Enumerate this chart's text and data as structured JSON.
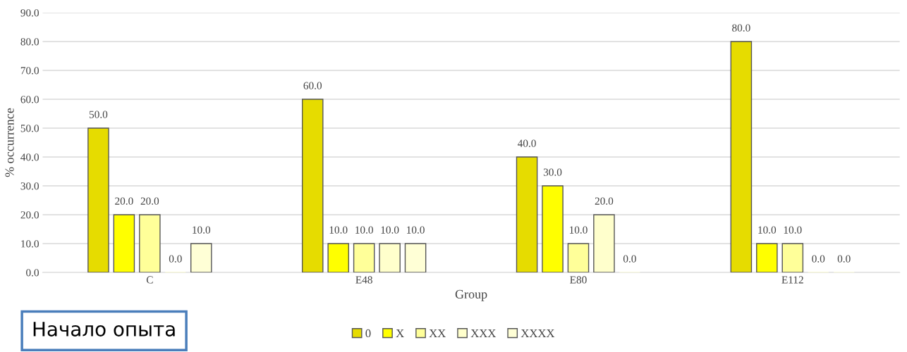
{
  "chart_data": {
    "type": "bar",
    "xlabel": "Group",
    "ylabel": "% occurrence",
    "categories": [
      "C",
      "E48",
      "E80",
      "E112"
    ],
    "series": [
      {
        "name": "0",
        "color": "#e6dc00",
        "values": [
          50.0,
          60.0,
          40.0,
          80.0
        ],
        "value_labels": [
          "50.0",
          "60.0",
          "40.0",
          "80.0"
        ]
      },
      {
        "name": "X",
        "color": "#ffff00",
        "values": [
          20.0,
          10.0,
          30.0,
          10.0
        ],
        "value_labels": [
          "20.0",
          "10.0",
          "30.0",
          "10.0"
        ]
      },
      {
        "name": "XX",
        "color": "#ffff99",
        "values": [
          20.0,
          10.0,
          10.0,
          10.0
        ],
        "value_labels": [
          "20.0",
          "10.0",
          "10.0",
          "10.0"
        ]
      },
      {
        "name": "XXX",
        "color": "#ffffcc",
        "values": [
          0.0,
          10.0,
          20.0,
          0.0
        ],
        "value_labels": [
          "0.0",
          "10.0",
          "20.0",
          "0.0"
        ]
      },
      {
        "name": "XXXX",
        "color": "#ffffd6",
        "values": [
          10.0,
          10.0,
          0.0,
          0.0
        ],
        "value_labels": [
          "10.0",
          "10.0",
          "0.0",
          "0.0"
        ]
      }
    ],
    "ylim": [
      0,
      90
    ],
    "yticks": [
      {
        "value": 0,
        "label": "0.0"
      },
      {
        "value": 10,
        "label": "10.0"
      },
      {
        "value": 20,
        "label": "20.0"
      },
      {
        "value": 30,
        "label": "30.0"
      },
      {
        "value": 40,
        "label": "40.0"
      },
      {
        "value": 50,
        "label": "50.0"
      },
      {
        "value": 60,
        "label": "60.0"
      },
      {
        "value": 70,
        "label": "70.0"
      },
      {
        "value": 80,
        "label": "80.0"
      },
      {
        "value": 90,
        "label": "90.0"
      }
    ],
    "grid": "y",
    "legend": "bottom",
    "annotations": [
      "Начало опыта"
    ]
  }
}
